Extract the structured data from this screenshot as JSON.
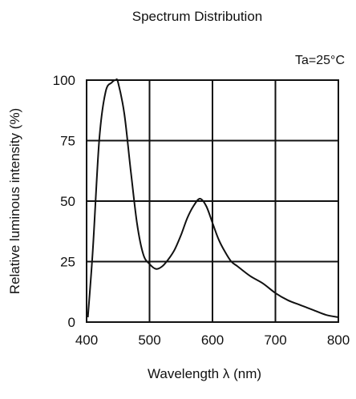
{
  "chart_data": {
    "type": "line",
    "title": "Spectrum Distribution",
    "annotation": "Ta=25°C",
    "xlabel": "Wavelength  λ (nm)",
    "ylabel": "Relative luminous intensity  (%)",
    "xlim": [
      400,
      800
    ],
    "ylim": [
      0,
      100
    ],
    "x_ticks": [
      400,
      500,
      600,
      700,
      800
    ],
    "y_ticks": [
      0,
      25,
      50,
      75,
      100
    ],
    "x_tick_labels": [
      "400",
      "500",
      "600",
      "700",
      "800"
    ],
    "y_tick_labels": [
      "0",
      "25",
      "50",
      "75",
      "100"
    ],
    "grid": true,
    "line_color": "#111111",
    "grid_color": "#111111",
    "series": [
      {
        "name": "",
        "x": [
          402,
          410,
          420,
          430,
          440,
          446,
          450,
          460,
          470,
          480,
          490,
          500,
          510,
          520,
          530,
          540,
          550,
          560,
          570,
          580,
          590,
          600,
          610,
          620,
          630,
          640,
          660,
          680,
          700,
          720,
          740,
          760,
          780,
          800
        ],
        "y": [
          2,
          30,
          75,
          95,
          99,
          100,
          99,
          86,
          63,
          41,
          28,
          24,
          22,
          23,
          26,
          30,
          36,
          43,
          48,
          51,
          48,
          41,
          34,
          29,
          25,
          23,
          19,
          16,
          12,
          9,
          7,
          5,
          3,
          2
        ]
      }
    ]
  }
}
